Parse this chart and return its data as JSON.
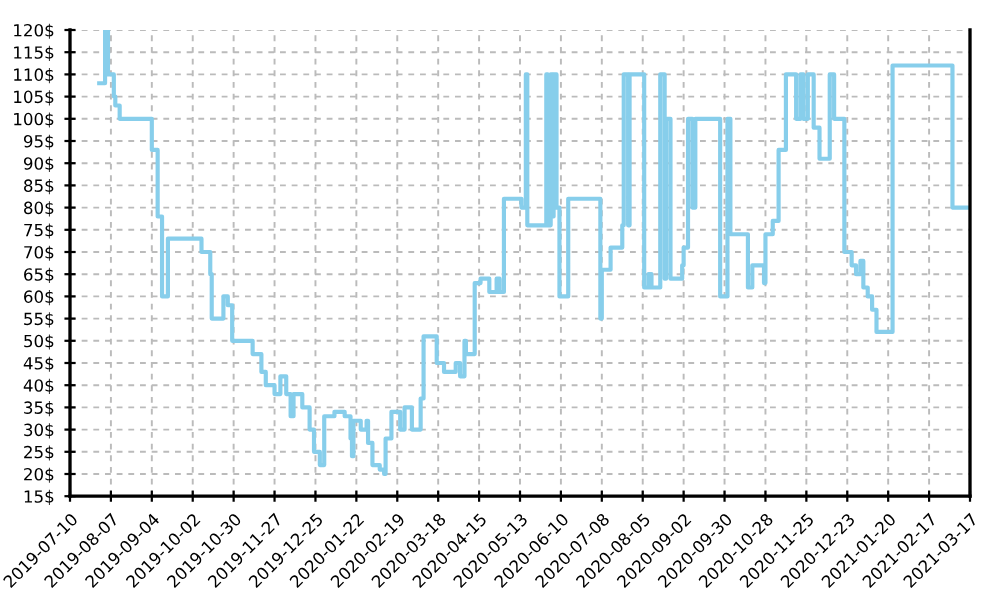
{
  "chart_data": {
    "type": "step",
    "color": "#87ceeb",
    "grid": true,
    "line_style": "solid",
    "x": [
      "2019-07-30",
      "2019-08-03",
      "2019-08-05",
      "2019-08-09",
      "2019-08-10",
      "2019-08-13",
      "2019-09-04",
      "2019-09-08",
      "2019-09-11",
      "2019-09-15",
      "2019-10-08",
      "2019-10-14",
      "2019-10-15",
      "2019-10-23",
      "2019-10-26",
      "2019-10-29",
      "2019-11-12",
      "2019-11-18",
      "2019-11-21",
      "2019-11-27",
      "2019-12-01",
      "2019-12-05",
      "2019-12-08",
      "2019-12-10",
      "2019-12-16",
      "2019-12-21",
      "2019-12-24",
      "2019-12-28",
      "2019-12-31",
      "2020-01-07",
      "2020-01-14",
      "2020-01-18",
      "2020-01-19",
      "2020-01-20",
      "2020-01-25",
      "2020-01-29",
      "2020-01-30",
      "2020-02-02",
      "2020-02-07",
      "2020-02-10",
      "2020-02-11",
      "2020-02-15",
      "2020-02-21",
      "2020-02-24",
      "2020-02-29",
      "2020-03-06",
      "2020-03-08",
      "2020-03-17",
      "2020-03-22",
      "2020-03-30",
      "2020-04-02",
      "2020-04-05",
      "2020-04-06",
      "2020-04-12",
      "2020-04-16",
      "2020-04-22",
      "2020-04-27",
      "2020-04-29",
      "2020-05-02",
      "2020-05-14",
      "2020-05-17",
      "2020-05-18",
      "2020-05-31",
      "2020-06-01",
      "2020-06-03",
      "2020-06-04",
      "2020-06-05",
      "2020-06-07",
      "2020-06-09",
      "2020-06-15",
      "2020-07-07",
      "2020-07-08",
      "2020-07-14",
      "2020-07-22",
      "2020-07-23",
      "2020-07-26",
      "2020-07-27",
      "2020-08-06",
      "2020-08-09",
      "2020-08-11",
      "2020-08-17",
      "2020-08-20",
      "2020-08-21",
      "2020-08-24",
      "2020-09-01",
      "2020-09-02",
      "2020-09-05",
      "2020-09-08",
      "2020-09-10",
      "2020-09-27",
      "2020-10-02",
      "2020-10-04",
      "2020-10-16",
      "2020-10-19",
      "2020-10-27",
      "2020-10-28",
      "2020-11-02",
      "2020-11-06",
      "2020-11-11",
      "2020-11-18",
      "2020-11-21",
      "2020-11-23",
      "2020-11-26",
      "2020-11-30",
      "2020-12-04",
      "2020-12-11",
      "2020-12-14",
      "2020-12-21",
      "2020-12-26",
      "2020-12-29",
      "2021-01-01",
      "2021-01-03",
      "2021-01-06",
      "2021-01-09",
      "2021-01-12",
      "2021-01-23",
      "2021-03-05",
      "2021-03-16"
    ],
    "values": [
      108,
      120,
      110,
      105,
      103,
      100,
      93,
      78,
      60,
      73,
      70,
      65,
      55,
      60,
      58,
      50,
      47,
      43,
      40,
      38,
      42,
      38,
      33,
      38,
      35,
      30,
      25,
      22,
      33,
      34,
      33,
      28,
      24,
      32,
      30,
      32,
      27,
      22,
      21,
      20,
      28,
      34,
      30,
      35,
      30,
      37,
      51,
      45,
      43,
      45,
      42,
      50,
      47,
      63,
      64,
      61,
      64,
      61,
      82,
      80,
      110,
      76,
      110,
      76,
      110,
      78,
      110,
      80,
      60,
      82,
      55,
      66,
      71,
      76,
      110,
      76,
      110,
      62,
      65,
      62,
      110,
      64,
      100,
      64,
      67,
      71,
      100,
      80,
      100,
      60,
      100,
      74,
      62,
      67,
      63,
      74,
      77,
      93,
      110,
      100,
      110,
      100,
      110,
      98,
      91,
      110,
      100,
      70,
      67,
      65,
      68,
      62,
      60,
      57,
      52,
      112,
      80,
      80
    ],
    "xlim": [
      "2019-07-10",
      "2021-03-17"
    ],
    "xticks": [
      "2019-07-10",
      "2019-08-07",
      "2019-09-04",
      "2019-10-02",
      "2019-10-30",
      "2019-11-27",
      "2019-12-25",
      "2020-01-22",
      "2020-02-19",
      "2020-03-18",
      "2020-04-15",
      "2020-05-13",
      "2020-06-10",
      "2020-07-08",
      "2020-08-05",
      "2020-09-02",
      "2020-09-30",
      "2020-10-28",
      "2020-11-25",
      "2020-12-23",
      "2021-01-20",
      "2021-02-17",
      "2021-03-17"
    ],
    "ylim": [
      15,
      120
    ],
    "yticks": [
      {
        "value": 15,
        "label": "15$"
      },
      {
        "value": 20,
        "label": "20$"
      },
      {
        "value": 25,
        "label": "25$"
      },
      {
        "value": 30,
        "label": "30$"
      },
      {
        "value": 35,
        "label": "35$"
      },
      {
        "value": 40,
        "label": "40$"
      },
      {
        "value": 45,
        "label": "45$"
      },
      {
        "value": 50,
        "label": "50$"
      },
      {
        "value": 55,
        "label": "55$"
      },
      {
        "value": 60,
        "label": "60$"
      },
      {
        "value": 65,
        "label": "65$"
      },
      {
        "value": 70,
        "label": "70$"
      },
      {
        "value": 75,
        "label": "75$"
      },
      {
        "value": 80,
        "label": "80$"
      },
      {
        "value": 85,
        "label": "85$"
      },
      {
        "value": 90,
        "label": "90$"
      },
      {
        "value": 95,
        "label": "95$"
      },
      {
        "value": 100,
        "label": "100$"
      },
      {
        "value": 105,
        "label": "105$"
      },
      {
        "value": 110,
        "label": "110$"
      },
      {
        "value": 115,
        "label": "115$"
      },
      {
        "value": 120,
        "label": "120$"
      }
    ]
  }
}
